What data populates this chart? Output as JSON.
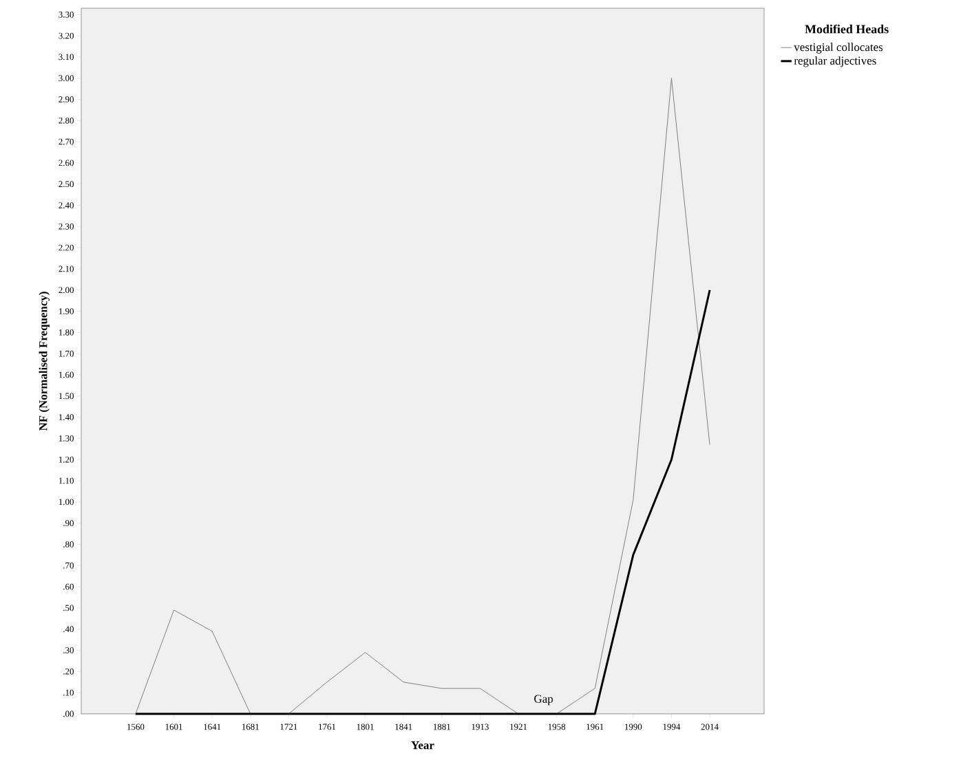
{
  "chart_data": {
    "type": "line",
    "xlabel": "Year",
    "ylabel": "NF (Normalised Frequency)",
    "legend_title": "Modified Heads",
    "legend": "top right",
    "marker": "none",
    "categories": [
      "1560",
      "1601",
      "1641",
      "1681",
      "1721",
      "1761",
      "1801",
      "1841",
      "1881",
      "1913",
      "1921",
      "1958",
      "1961",
      "1990",
      "1994",
      "2014"
    ],
    "series": [
      {
        "name": "vestigial collocates",
        "color": "#808080",
        "values": [
          0,
          0.49,
          0.39,
          0,
          0,
          0.15,
          0.29,
          0.15,
          0.12,
          0.12,
          0,
          0,
          0.12,
          1.01,
          3.0,
          1.27
        ]
      },
      {
        "name": "regular adjectives",
        "color": "#000000",
        "values": [
          0,
          0,
          0,
          0,
          0,
          0,
          0,
          0,
          0,
          0,
          0,
          0,
          0,
          0.75,
          1.2,
          2.0
        ]
      }
    ],
    "ylim": [
      0,
      3.33
    ],
    "yticks": [
      {
        "value": 0,
        "label": ".00"
      },
      {
        "value": 0.1,
        "label": ".10"
      },
      {
        "value": 0.2,
        "label": ".20"
      },
      {
        "value": 0.3,
        "label": ".30"
      },
      {
        "value": 0.4,
        "label": ".40"
      },
      {
        "value": 0.5,
        "label": ".50"
      },
      {
        "value": 0.6,
        "label": ".60"
      },
      {
        "value": 0.7,
        "label": ".70"
      },
      {
        "value": 0.8,
        "label": ".80"
      },
      {
        "value": 0.9,
        "label": ".90"
      },
      {
        "value": 1.0,
        "label": "1.00"
      },
      {
        "value": 1.1,
        "label": "1.10"
      },
      {
        "value": 1.2,
        "label": "1.20"
      },
      {
        "value": 1.3,
        "label": "1.30"
      },
      {
        "value": 1.4,
        "label": "1.40"
      },
      {
        "value": 1.5,
        "label": "1.50"
      },
      {
        "value": 1.6,
        "label": "1.60"
      },
      {
        "value": 1.7,
        "label": "1.70"
      },
      {
        "value": 1.8,
        "label": "1.80"
      },
      {
        "value": 1.9,
        "label": "1.90"
      },
      {
        "value": 2.0,
        "label": "2.00"
      },
      {
        "value": 2.1,
        "label": "2.10"
      },
      {
        "value": 2.2,
        "label": "2.20"
      },
      {
        "value": 2.3,
        "label": "2.30"
      },
      {
        "value": 2.4,
        "label": "2.40"
      },
      {
        "value": 2.5,
        "label": "2.50"
      },
      {
        "value": 2.6,
        "label": "2.60"
      },
      {
        "value": 2.7,
        "label": "2.70"
      },
      {
        "value": 2.8,
        "label": "2.80"
      },
      {
        "value": 2.9,
        "label": "2.90"
      },
      {
        "value": 3.0,
        "label": "3.00"
      },
      {
        "value": 3.1,
        "label": "3.10"
      },
      {
        "value": 3.2,
        "label": "3.20"
      },
      {
        "value": 3.3,
        "label": "3.30"
      }
    ],
    "annotations": [
      "Gap"
    ]
  }
}
